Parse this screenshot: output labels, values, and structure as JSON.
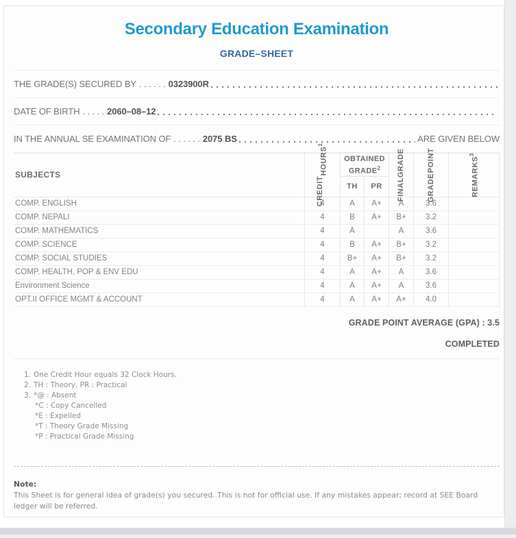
{
  "header": {
    "title": "Secondary Education Examination",
    "subtitle": "GRADE–SHEET"
  },
  "info_lines": [
    {
      "label": "THE GRADE(S) SECURED BY",
      "dots": ". . . . . .",
      "value": "0323900R",
      "suffix": ""
    },
    {
      "label": "DATE OF BIRTH",
      "dots": ". . . . .",
      "value": "2060–08–12",
      "suffix": ""
    },
    {
      "label": "IN THE ANNUAL SE EXAMINATION OF",
      "dots": ". . . . . .",
      "value": "2075 BS",
      "suffix": "ARE GIVEN BELOW"
    }
  ],
  "table": {
    "headers": {
      "subjects": "SUBJECTS",
      "credit_line1": "CREDIT",
      "credit_line2": "HOURS",
      "credit_sup": "1",
      "obtained_grade": "OBTAINED GRADE",
      "obtained_sup": "2",
      "th": "TH",
      "pr": "PR",
      "final_line1": "FINAL",
      "final_line2": "GRADE",
      "gp_line1": "GRADE",
      "gp_line2": "POINT",
      "remarks": "REMARKS",
      "remarks_sup": "3"
    },
    "rows": [
      {
        "subject": "COMP. ENGLISH",
        "credit": "4",
        "th": "A",
        "pr": "A+",
        "final": "A",
        "gp": "3.6",
        "remarks": ""
      },
      {
        "subject": "COMP. NEPALI",
        "credit": "4",
        "th": "B",
        "pr": "A+",
        "final": "B+",
        "gp": "3.2",
        "remarks": ""
      },
      {
        "subject": "COMP. MATHEMATICS",
        "credit": "4",
        "th": "A",
        "pr": "",
        "final": "A",
        "gp": "3.6",
        "remarks": ""
      },
      {
        "subject": "COMP. SCIENCE",
        "credit": "4",
        "th": "B",
        "pr": "A+",
        "final": "B+",
        "gp": "3.2",
        "remarks": ""
      },
      {
        "subject": "COMP. SOCIAL STUDIES",
        "credit": "4",
        "th": "B+",
        "pr": "A+",
        "final": "B+",
        "gp": "3.2",
        "remarks": ""
      },
      {
        "subject": "COMP. HEALTH, POP & ENV EDU",
        "credit": "4",
        "th": "A",
        "pr": "A+",
        "final": "A",
        "gp": "3.6",
        "remarks": ""
      },
      {
        "subject": "Environment Science",
        "credit": "4",
        "th": "A",
        "pr": "A+",
        "final": "A",
        "gp": "3.6",
        "remarks": ""
      },
      {
        "subject": "OPT.II OFFICE MGMT & ACCOUNT",
        "credit": "4",
        "th": "A",
        "pr": "A+",
        "final": "A+",
        "gp": "4.0",
        "remarks": ""
      }
    ]
  },
  "summary": {
    "gpa_line": "GRADE POINT AVERAGE (GPA) : 3.5",
    "status": "COMPLETED"
  },
  "footnotes": [
    {
      "num": "1.",
      "text": "One Credit Hour equals 32 Clock Hours.",
      "indent": false
    },
    {
      "num": "2.",
      "text": "TH : Theory, PR : Practical",
      "indent": false
    },
    {
      "num": "3.",
      "text": "*@ : Absent",
      "indent": false
    },
    {
      "num": "",
      "text": "*C : Copy Cancelled",
      "indent": true
    },
    {
      "num": "",
      "text": "*E : Expelled",
      "indent": true
    },
    {
      "num": "",
      "text": "*T : Theory Grade Missing",
      "indent": true
    },
    {
      "num": "",
      "text": "*P : Practical Grade Missing",
      "indent": true
    }
  ],
  "note": {
    "label": "Note:",
    "text": "This Sheet is for general idea of grade(s) you secured. This is not for official use. If any mistakes appear; record at SEE Board ledger will be referred."
  },
  "colors": {
    "title": "#2299cb",
    "subtitle": "#34689d",
    "text_gray": "#717479",
    "value_dark": "#515459"
  }
}
